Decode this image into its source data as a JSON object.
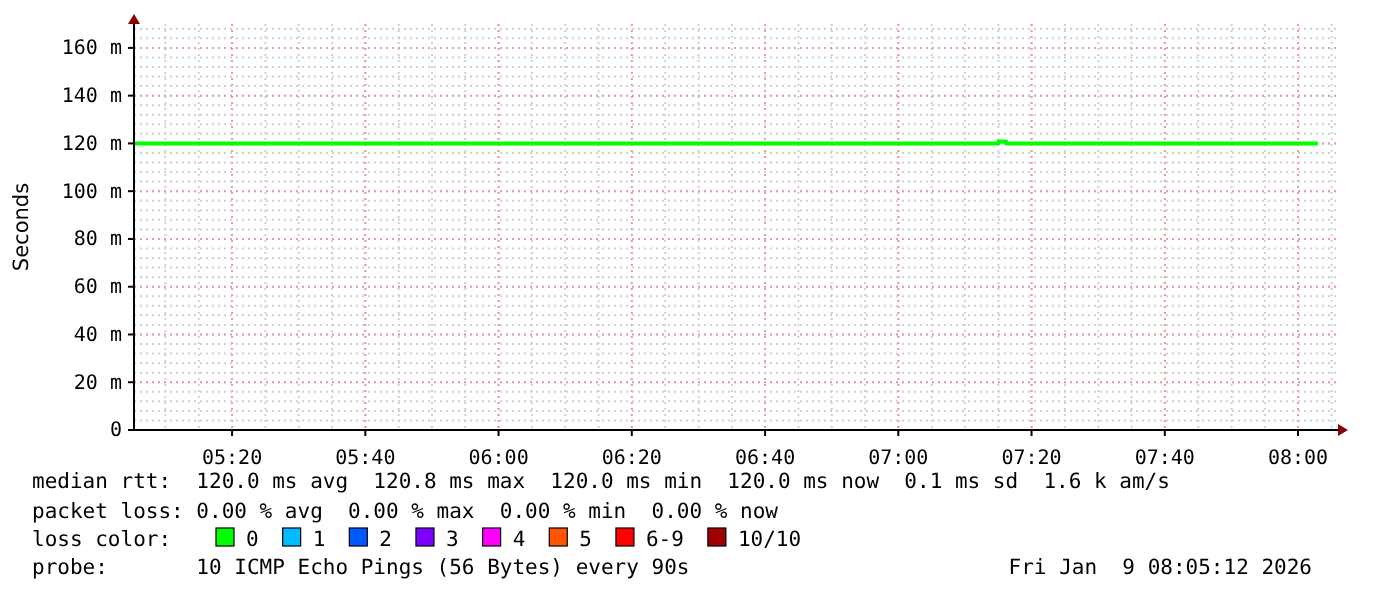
{
  "chart_data": {
    "type": "step",
    "ylabel": "Seconds",
    "x": [
      5.09,
      7.25,
      7.27,
      8.05
    ],
    "xlim": [
      5.088,
      8.095
    ],
    "xticks": [
      {
        "value": 5.3333,
        "label": "05:20"
      },
      {
        "value": 5.6667,
        "label": "05:40"
      },
      {
        "value": 6,
        "label": "06:00"
      },
      {
        "value": 6.3333,
        "label": "06:20"
      },
      {
        "value": 6.6667,
        "label": "06:40"
      },
      {
        "value": 7,
        "label": "07:00"
      },
      {
        "value": 7.3333,
        "label": "07:20"
      },
      {
        "value": 7.6667,
        "label": "07:40"
      },
      {
        "value": 8,
        "label": "08:00"
      }
    ],
    "ylim": [
      0,
      170
    ],
    "yticks": [
      0,
      {
        "value": 20,
        "label": "20 m"
      },
      {
        "value": 40,
        "label": "40 m"
      },
      {
        "value": 60,
        "label": "60 m"
      },
      {
        "value": 80,
        "label": "80 m"
      },
      {
        "value": 100,
        "label": "100 m"
      },
      {
        "value": 120,
        "label": "120 m"
      },
      {
        "value": 140,
        "label": "140 m"
      },
      {
        "value": 160,
        "label": "160 m"
      }
    ],
    "grid": true,
    "legend": "bottom",
    "legend_title": "loss color:",
    "series": [
      {
        "name": "0",
        "color": "#00ff00",
        "values": [
          120,
          120.8,
          120,
          120
        ]
      },
      {
        "name": "1",
        "color": "#00bbff",
        "values": [
          null,
          null,
          null,
          null
        ]
      },
      {
        "name": "2",
        "color": "#0059ff",
        "values": [
          null,
          null,
          null,
          null
        ]
      },
      {
        "name": "3",
        "color": "#7e00ff",
        "values": [
          null,
          null,
          null,
          null
        ]
      },
      {
        "name": "4",
        "color": "#ff00ff",
        "values": [
          null,
          null,
          null,
          null
        ]
      },
      {
        "name": "5",
        "color": "#ff5500",
        "values": [
          null,
          null,
          null,
          null
        ]
      },
      {
        "name": "6-9",
        "color": "#ff0000",
        "values": [
          null,
          null,
          null,
          null
        ]
      },
      {
        "name": "10/10",
        "color": "#a10000",
        "values": [
          null,
          null,
          null,
          null
        ]
      }
    ],
    "annotations": [
      "median rtt:  120.0 ms avg  120.8 ms max  120.0 ms min  120.0 ms now  0.1 ms sd  1.6 k am/s",
      "packet loss: 0.00 % avg  0.00 % max  0.00 % min  0.00 % now",
      "probe:       10 ICMP Echo Pings (56 Bytes) every 90s",
      "Fri Jan  9 08:05:12 2026"
    ]
  }
}
